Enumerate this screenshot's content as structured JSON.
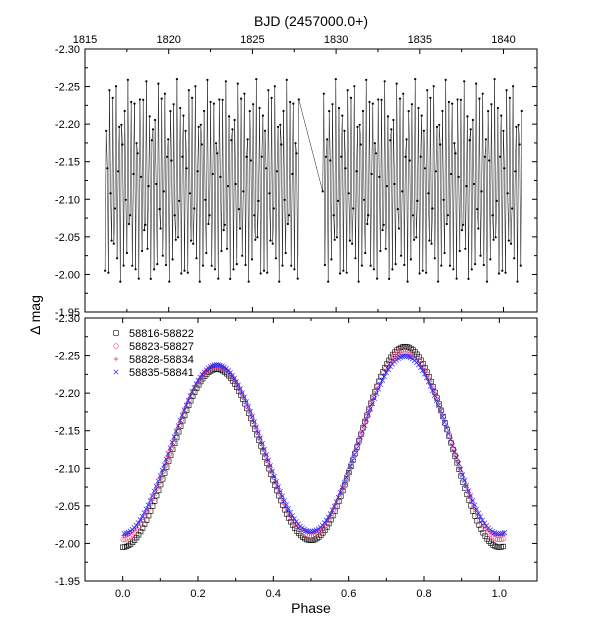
{
  "figure": {
    "shared_ylabel": "Δ mag",
    "top_xlabel": "BJD (2457000.0+)",
    "bottom_xlabel": "Phase"
  },
  "chart_data": [
    {
      "type": "scatter",
      "panel": "light-curve",
      "title": "",
      "xlabel": "BJD (2457000.0+)",
      "ylabel": "Δ mag",
      "x_axis_position": "top",
      "xlim": [
        1815,
        1842
      ],
      "ylim": [
        -2.3,
        -1.95
      ],
      "y_inverted": true,
      "x_ticks": [
        1815,
        1820,
        1825,
        1830,
        1835,
        1840
      ],
      "y_ticks": [
        -2.3,
        -2.25,
        -2.2,
        -2.15,
        -2.1,
        -2.05,
        -2.0,
        -1.95
      ],
      "marker_color": "#000000",
      "line_connected": true,
      "model": {
        "description_of_shape": "double-wave W UMa-type light curve",
        "period_days": 0.365,
        "epoch": 1816.2,
        "mean_mag": -2.12,
        "semi_amplitude": 0.125,
        "max_mags": [
          -2.235,
          -2.26
        ],
        "min_mags": [
          -2.005,
          -1.99
        ],
        "segments": [
          [
            1816.2,
            1827.8
          ],
          [
            1829.2,
            1841.1
          ]
        ]
      }
    },
    {
      "type": "scatter",
      "panel": "phased",
      "title": "",
      "xlabel": "Phase",
      "ylabel": "Δ mag",
      "xlim": [
        -0.1,
        1.1
      ],
      "ylim": [
        -2.3,
        -1.95
      ],
      "y_inverted": true,
      "x_ticks": [
        0.0,
        0.2,
        0.4,
        0.6,
        0.8,
        1.0
      ],
      "y_ticks": [
        -2.3,
        -2.25,
        -2.2,
        -2.15,
        -2.1,
        -2.05,
        -2.0,
        -1.95
      ],
      "legend_position": "top-left",
      "phase_range": [
        0.0,
        1.01
      ],
      "series": [
        {
          "name": "58816-58822",
          "marker": "open-square",
          "color": "#000000",
          "max1": -2.232,
          "max2": -2.262,
          "min1": -1.995,
          "min2": -2.004
        },
        {
          "name": "58823-58827",
          "marker": "open-circle",
          "color": "#ff3f7f",
          "max1": -2.236,
          "max2": -2.258,
          "min1": -2.005,
          "min2": -2.01
        },
        {
          "name": "58828-58834",
          "marker": "plus",
          "color": "#c23b8a",
          "max1": -2.237,
          "max2": -2.252,
          "min1": -2.01,
          "min2": -2.014
        },
        {
          "name": "58835-58841",
          "marker": "cross",
          "color": "#2a2aff",
          "max1": -2.238,
          "max2": -2.249,
          "min1": -2.013,
          "min2": -2.016
        }
      ]
    }
  ]
}
